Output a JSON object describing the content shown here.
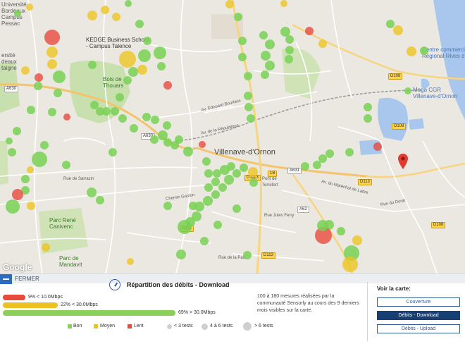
{
  "map": {
    "labels": {
      "universite_bordeaux": "Université\nBordeaux\nCampus\nPessac",
      "universite_montaigne": "ersité\ndeaux\ntaigne",
      "kedge": "KEDGE Business School\n- Campus Talence",
      "bois_thouars": "Bois de\nThouars",
      "centre_commercial": "Centre commercial\nRégional Rives d'...",
      "mega_cgr": "Mega CGR\nVillenave-d'Ornon",
      "villenave": "Villenave-d'Ornon",
      "parc_rene": "Parc René\nCanivenc",
      "parc_mandavit": "Parc de\nMandavit",
      "pont_lamothe": "Pont de\nTerrefort",
      "ave_edouard": "Av. Édouard Bourlaux",
      "ave_republique": "Av. de la République",
      "ave_marechal": "Av. du Maréchal de Lattre",
      "rue_jules": "Rue Jules Ferry",
      "chemin_gaston": "Chemin Gaston",
      "rue_sarrazin": "Rue de Sarrazin",
      "rue_dorat": "Rue du Dorat",
      "rue_pages": "Rue de la Paix",
      "google": "Google"
    },
    "road_badges": [
      "A630",
      "A630",
      "A631",
      "A62",
      "D108",
      "D108",
      "D108",
      "D1113",
      "D113",
      "D113",
      "D211",
      "1B"
    ]
  },
  "panel": {
    "close_label": "FERMER",
    "title": "Répartition des débits - Download",
    "bars": [
      {
        "label": "9% < 10.0Mbps",
        "percent": 9,
        "color": "#e64a3b"
      },
      {
        "label": "22% < 30.0Mbps",
        "percent": 22,
        "color": "#ecc122"
      },
      {
        "label": "69% > 30.0Mbps",
        "percent": 69,
        "color": "#8ccf5a"
      }
    ],
    "legend": {
      "good": "Bon",
      "mid": "Moyen",
      "bad": "Lent",
      "small": "< 3 tests",
      "medium": "4 à 6 tests",
      "large": "> 6 tests"
    },
    "note": "100 à 180 mesures réalisées par la communauté Sensorly au cours des 9 derniers mois visibles sur la carte.",
    "voir_title": "Voir la carte:",
    "buttons": {
      "couverture": "Couverture",
      "download": "Débits - Download",
      "upload": "Débits - Upload"
    }
  },
  "colors": {
    "good": "#79d155",
    "mid": "#ecc422",
    "bad": "#e94a3e",
    "accent": "#173f73"
  }
}
